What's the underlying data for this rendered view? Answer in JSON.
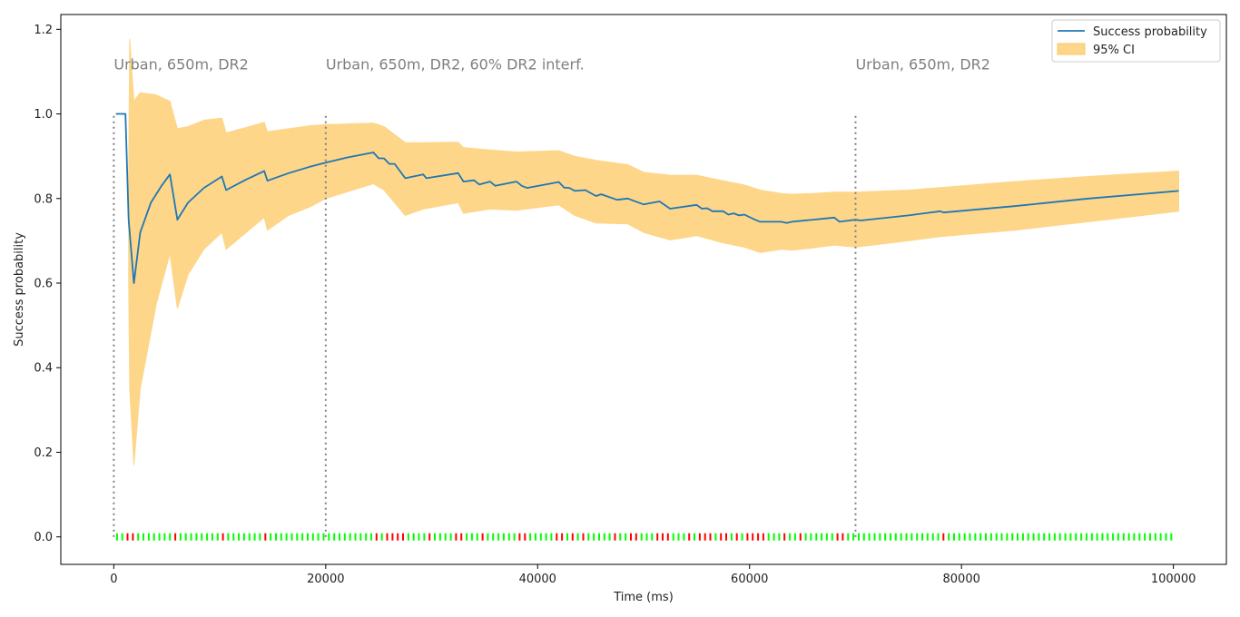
{
  "chart_data": {
    "type": "line",
    "xlabel": "Time (ms)",
    "ylabel": "Success probability",
    "xlim": [
      -5000,
      105000
    ],
    "ylim": [
      -0.065,
      1.235
    ],
    "xticks": [
      0,
      20000,
      40000,
      60000,
      80000,
      100000
    ],
    "xtick_labels": [
      "0",
      "20000",
      "40000",
      "60000",
      "80000",
      "100000"
    ],
    "yticks": [
      0.0,
      0.2,
      0.4,
      0.6,
      0.8,
      1.0,
      1.2
    ],
    "ytick_labels": [
      "0.0",
      "0.2",
      "0.4",
      "0.6",
      "0.8",
      "1.0",
      "1.2"
    ],
    "grid": false,
    "legend": {
      "placement": "top-right",
      "entries": [
        {
          "label": "Success probability",
          "kind": "line",
          "color": "#1f77b4"
        },
        {
          "label": "95% CI",
          "kind": "band",
          "color": "#fdd68a"
        }
      ]
    },
    "phase_markers": [
      {
        "x": 0,
        "label": "Urban, 650m, DR2"
      },
      {
        "x": 20000,
        "label": "Urban, 650m, DR2, 60% DR2 interf."
      },
      {
        "x": 70000,
        "label": "Urban, 650m, DR2"
      }
    ],
    "series": [
      {
        "name": "Success probability",
        "color": "#1f77b4",
        "x": [
          200,
          1100,
          1400,
          1900,
          2500,
          3500,
          4500,
          5300,
          6000,
          7000,
          8500,
          10200,
          10600,
          12500,
          14200,
          14500,
          16500,
          18500,
          20000,
          22000,
          24500,
          25000,
          25500,
          26000,
          26500,
          27500,
          29200,
          29500,
          32500,
          33000,
          34000,
          34500,
          35500,
          36000,
          38000,
          38500,
          39000,
          42000,
          42500,
          43000,
          43500,
          44500,
          45500,
          46000,
          47500,
          48500,
          50000,
          51500,
          52500,
          55000,
          55500,
          56000,
          56500,
          57500,
          58000,
          58500,
          59000,
          59500,
          60500,
          61000,
          61500,
          63000,
          63500,
          64000,
          66000,
          68000,
          68500,
          70000,
          70500,
          75000,
          78000,
          78300,
          85000,
          92000,
          100500
        ],
        "y": [
          1.0,
          1.0,
          0.75,
          0.6,
          0.72,
          0.79,
          0.83,
          0.857,
          0.75,
          0.79,
          0.825,
          0.852,
          0.82,
          0.845,
          0.865,
          0.842,
          0.86,
          0.875,
          0.885,
          0.897,
          0.909,
          0.895,
          0.895,
          0.882,
          0.882,
          0.848,
          0.857,
          0.848,
          0.86,
          0.84,
          0.843,
          0.833,
          0.84,
          0.83,
          0.84,
          0.83,
          0.825,
          0.839,
          0.826,
          0.825,
          0.818,
          0.82,
          0.806,
          0.81,
          0.797,
          0.8,
          0.786,
          0.793,
          0.776,
          0.785,
          0.776,
          0.777,
          0.77,
          0.77,
          0.762,
          0.765,
          0.76,
          0.762,
          0.75,
          0.745,
          0.745,
          0.745,
          0.742,
          0.745,
          0.75,
          0.755,
          0.745,
          0.75,
          0.748,
          0.76,
          0.77,
          0.767,
          0.782,
          0.8,
          0.818
        ]
      },
      {
        "name": "95% CI",
        "kind": "band",
        "color": "#fdd68a",
        "x": [
          1400,
          1500,
          1900,
          2500,
          4000,
          5300,
          6000,
          7000,
          8500,
          10200,
          10600,
          12500,
          14200,
          14500,
          16500,
          18500,
          20000,
          24500,
          25500,
          27500,
          29200,
          32500,
          33000,
          35500,
          38000,
          42000,
          43500,
          45500,
          48500,
          50000,
          52500,
          55000,
          57500,
          59500,
          61000,
          63000,
          64000,
          66000,
          68000,
          70000,
          75000,
          78000,
          85000,
          92000,
          100500
        ],
        "upper": [
          0.85,
          1.178,
          1.03,
          1.05,
          1.045,
          1.03,
          0.965,
          0.97,
          0.985,
          0.99,
          0.955,
          0.968,
          0.98,
          0.958,
          0.965,
          0.972,
          0.975,
          0.978,
          0.97,
          0.932,
          0.932,
          0.933,
          0.92,
          0.915,
          0.91,
          0.913,
          0.9,
          0.89,
          0.88,
          0.862,
          0.855,
          0.855,
          0.842,
          0.832,
          0.82,
          0.812,
          0.81,
          0.812,
          0.815,
          0.815,
          0.82,
          0.826,
          0.84,
          0.852,
          0.865
        ],
        "lower": [
          0.62,
          0.35,
          0.17,
          0.35,
          0.55,
          0.67,
          0.54,
          0.62,
          0.68,
          0.72,
          0.68,
          0.72,
          0.755,
          0.725,
          0.76,
          0.78,
          0.8,
          0.835,
          0.82,
          0.76,
          0.775,
          0.79,
          0.765,
          0.775,
          0.772,
          0.785,
          0.76,
          0.742,
          0.74,
          0.72,
          0.702,
          0.712,
          0.695,
          0.685,
          0.672,
          0.68,
          0.678,
          0.683,
          0.69,
          0.685,
          0.7,
          0.71,
          0.725,
          0.745,
          0.77
        ]
      }
    ],
    "events": {
      "start": 300,
      "step": 500,
      "count": 200,
      "success_color": "#00ff00",
      "failure_color": "#ff0000",
      "failures": [
        1500,
        2000,
        5800,
        6000,
        10500,
        14300,
        24900,
        26000,
        26500,
        27000,
        27500,
        29800,
        32500,
        33000,
        34800,
        38300,
        38800,
        42000,
        42500,
        43500,
        44500,
        47500,
        48800,
        49300,
        51300,
        51800,
        52300,
        54200,
        55300,
        55800,
        56300,
        57300,
        57800,
        58800,
        59800,
        60300,
        60800,
        61300,
        63300,
        64800,
        68300,
        68800,
        78300
      ]
    }
  }
}
